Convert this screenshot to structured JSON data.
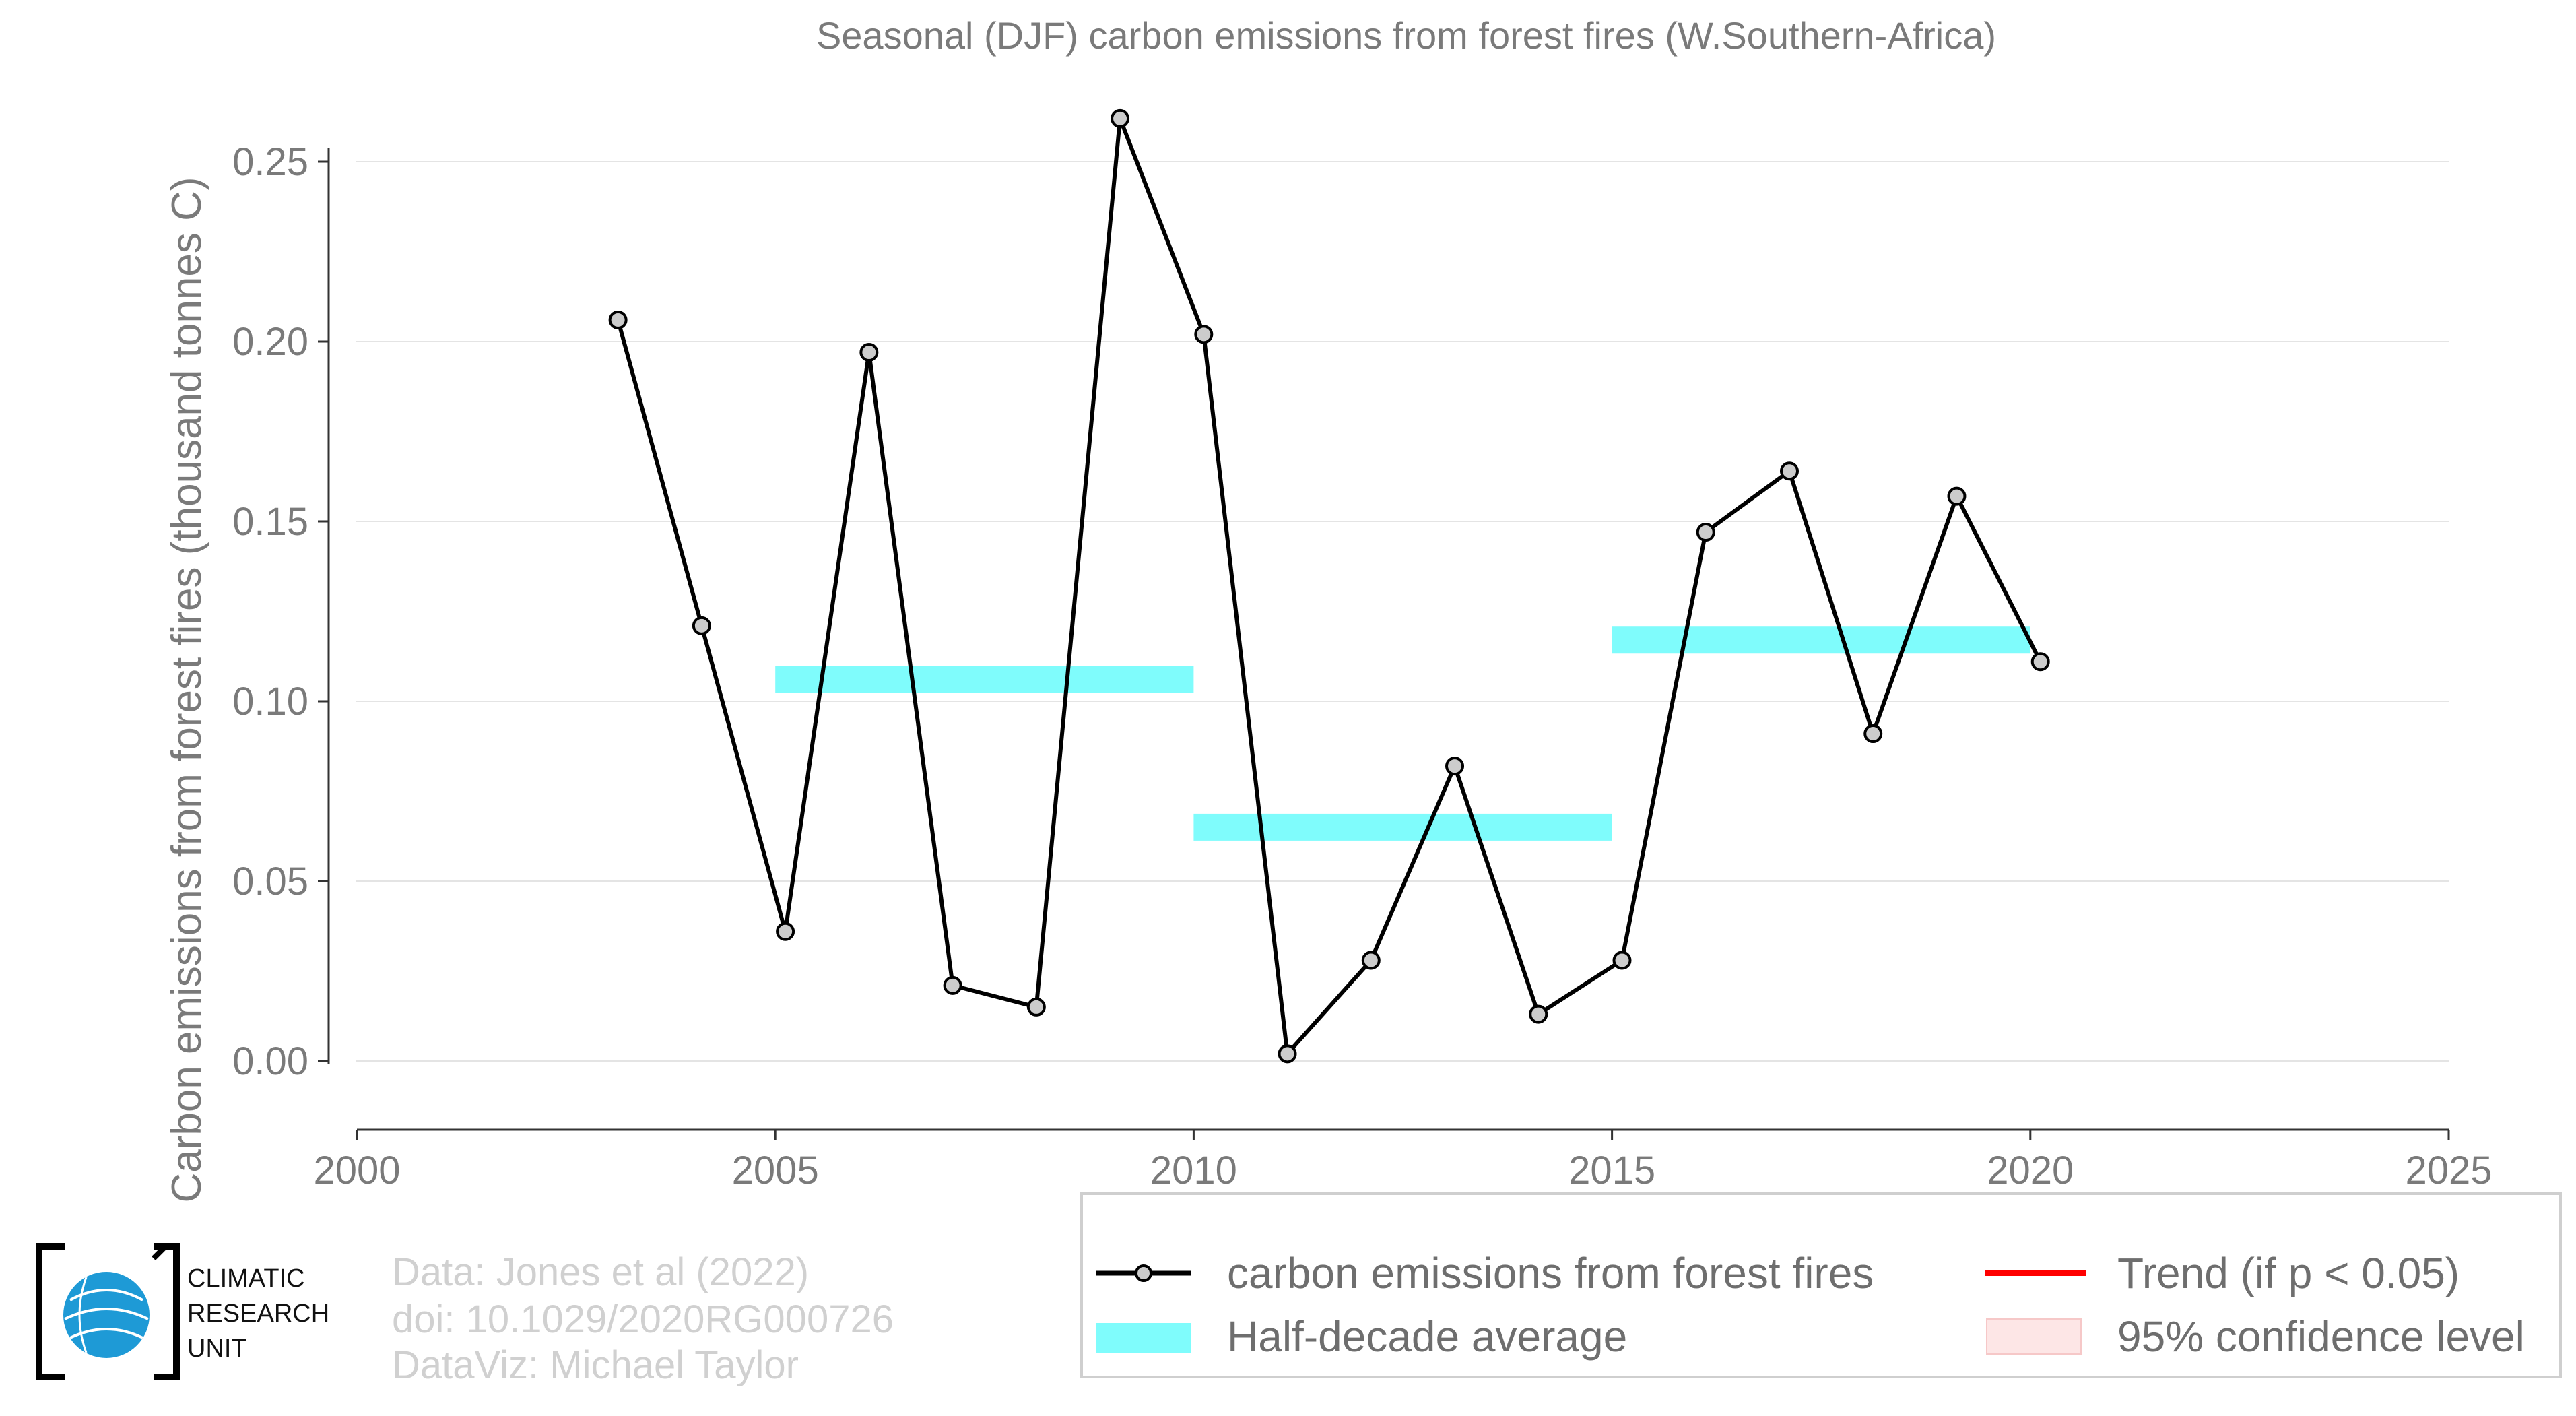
{
  "chart_data": {
    "type": "line",
    "title": "Seasonal (DJF) carbon emissions from forest fires (W.Southern-Africa)",
    "xlabel": "",
    "ylabel": "Carbon emissions from forest fires (thousand tonnes C)",
    "xlim": [
      2000,
      2025
    ],
    "ylim": [
      -0.019,
      0.265
    ],
    "x_ticks": [
      "2000",
      "2005",
      "2010",
      "2015",
      "2020",
      "2025"
    ],
    "y_ticks": [
      "0.00",
      "0.05",
      "0.10",
      "0.15",
      "0.20",
      "0.25"
    ],
    "grid": "horizontal",
    "series": [
      {
        "name": "carbon emissions from forest fires",
        "color": "#000000",
        "x": [
          2003,
          2004,
          2005,
          2006,
          2007,
          2008,
          2009,
          2010,
          2011,
          2012,
          2013,
          2014,
          2015,
          2016,
          2017,
          2018,
          2019,
          2020
        ],
        "y": [
          0.206,
          0.121,
          0.036,
          0.197,
          0.021,
          0.015,
          0.262,
          0.202,
          0.002,
          0.028,
          0.082,
          0.013,
          0.028,
          0.147,
          0.164,
          0.091,
          0.157,
          0.111
        ]
      }
    ],
    "half_decade_average": {
      "name": "Half-decade average",
      "color": "#7ffcfc",
      "periods": [
        {
          "start": 2005,
          "end": 2010,
          "value": 0.106
        },
        {
          "start": 2010,
          "end": 2015,
          "value": 0.065
        },
        {
          "start": 2015,
          "end": 2020,
          "value": 0.117
        }
      ]
    },
    "legend": [
      {
        "label": "carbon emissions from forest fires",
        "kind": "line-marker",
        "color": "#000000"
      },
      {
        "label": "Trend (if p < 0.05)",
        "kind": "line",
        "color": "#ff0000"
      },
      {
        "label": "Half-decade average",
        "kind": "band",
        "color": "#7ffcfc"
      },
      {
        "label": "95% confidence level",
        "kind": "band",
        "color": "#fde6e6"
      }
    ],
    "legend_placement": "bottom-right"
  },
  "credits": {
    "line1": "Data: Jones et al (2022)",
    "line2": "doi: 10.1029/2020RG000726",
    "line3": "DataViz: Michael Taylor"
  },
  "logo": {
    "line1": "CLIMATIC",
    "line2": "RESEARCH",
    "line3": "UNIT",
    "icon": "globe-icon",
    "color": "#1e9ad6"
  }
}
